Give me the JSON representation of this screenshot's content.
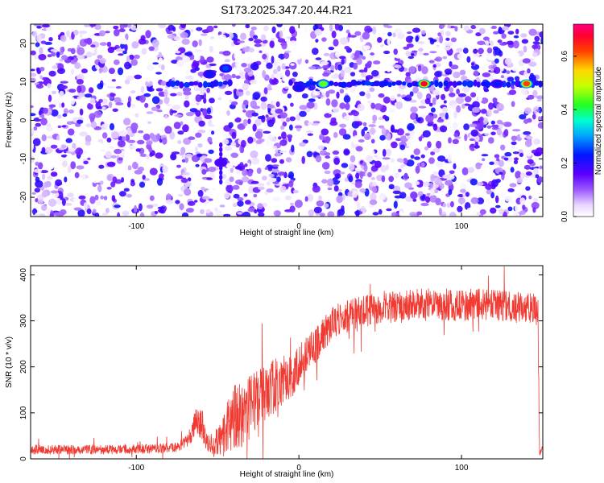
{
  "figure_title": "S173.2025.347.20.44.R21",
  "chart_data": [
    {
      "type": "heatmap",
      "title": "S173.2025.347.20.44.R21",
      "xlabel": "Height of straight line (km)",
      "ylabel": "Frequency (Hz)",
      "xlim": [
        -165,
        150
      ],
      "ylim": [
        -25,
        25
      ],
      "xticks": [
        -100,
        0,
        100
      ],
      "yticks": [
        -20,
        -10,
        0,
        10,
        20
      ],
      "xtick_labels": [
        "-100",
        "0",
        "100"
      ],
      "ytick_labels": [
        "-20",
        "-10",
        "0",
        "10",
        "20"
      ],
      "dominant_frequency_hz": 9.5,
      "frequency_lines": [
        {
          "x_range": [
            -80,
            -40
          ],
          "frequency": 9.5
        },
        {
          "x_range": [
            -5,
            150
          ],
          "frequency": 9.5
        }
      ],
      "hot_spots": [
        {
          "x": -45,
          "frequency": 13.5,
          "amplitude": 0.25
        },
        {
          "x": -55,
          "frequency": 12.0,
          "amplitude": 0.22
        },
        {
          "x": -48,
          "frequency": -11.0,
          "amplitude": 0.18
        },
        {
          "x": 0,
          "frequency": 8.5,
          "amplitude": 0.22
        },
        {
          "x": 15,
          "frequency": 9.5,
          "amplitude": 0.45
        },
        {
          "x": 77,
          "frequency": 9.5,
          "amplitude": 0.68
        },
        {
          "x": 122,
          "frequency": 9.5,
          "amplitude": 0.22
        },
        {
          "x": 140,
          "frequency": 9.5,
          "amplitude": 0.62
        }
      ],
      "colorbar": {
        "label": "Normalized spectral amplitude",
        "range": [
          0,
          0.72
        ],
        "ticks": [
          0.0,
          0.2,
          0.4,
          0.6
        ],
        "tick_labels": [
          "0.0",
          "0.2",
          "0.4",
          "0.6"
        ],
        "colormap": "rainbow (white-violet-blue-cyan-green-yellow-red-magenta)"
      }
    },
    {
      "type": "line",
      "xlabel": "Height of straight line (km)",
      "ylabel": "SNR (10 * v/v)",
      "xlim": [
        -165,
        150
      ],
      "ylim": [
        0,
        420
      ],
      "xticks": [
        -100,
        0,
        100
      ],
      "yticks": [
        0,
        100,
        200,
        300,
        400
      ],
      "xtick_labels": [
        "-100",
        "0",
        "100"
      ],
      "ytick_labels": [
        "0",
        "100",
        "200",
        "300",
        "400"
      ],
      "color": "#f03a32",
      "series": [
        {
          "name": "SNR",
          "x": [
            -165,
            -140,
            -110,
            -90,
            -75,
            -68,
            -63,
            -60,
            -57,
            -53,
            -48,
            -43,
            -40,
            -35,
            -30,
            -25,
            -20,
            -15,
            -10,
            -5,
            0,
            5,
            10,
            15,
            20,
            25,
            30,
            40,
            50,
            60,
            75,
            90,
            100,
            110,
            120,
            130,
            140,
            147,
            148,
            150
          ],
          "y": [
            20,
            20,
            20,
            22,
            25,
            40,
            90,
            80,
            35,
            30,
            40,
            75,
            95,
            95,
            115,
            135,
            145,
            160,
            170,
            175,
            205,
            230,
            245,
            270,
            295,
            305,
            310,
            320,
            330,
            330,
            335,
            335,
            335,
            335,
            335,
            330,
            325,
            325,
            10,
            25
          ],
          "noise_amplitude": [
            10,
            10,
            10,
            10,
            10,
            15,
            35,
            40,
            20,
            25,
            40,
            60,
            75,
            75,
            70,
            65,
            60,
            60,
            55,
            50,
            45,
            40,
            40,
            40,
            35,
            35,
            35,
            35,
            35,
            35,
            35,
            35,
            35,
            35,
            35,
            35,
            35,
            35,
            5,
            5
          ]
        }
      ]
    }
  ]
}
